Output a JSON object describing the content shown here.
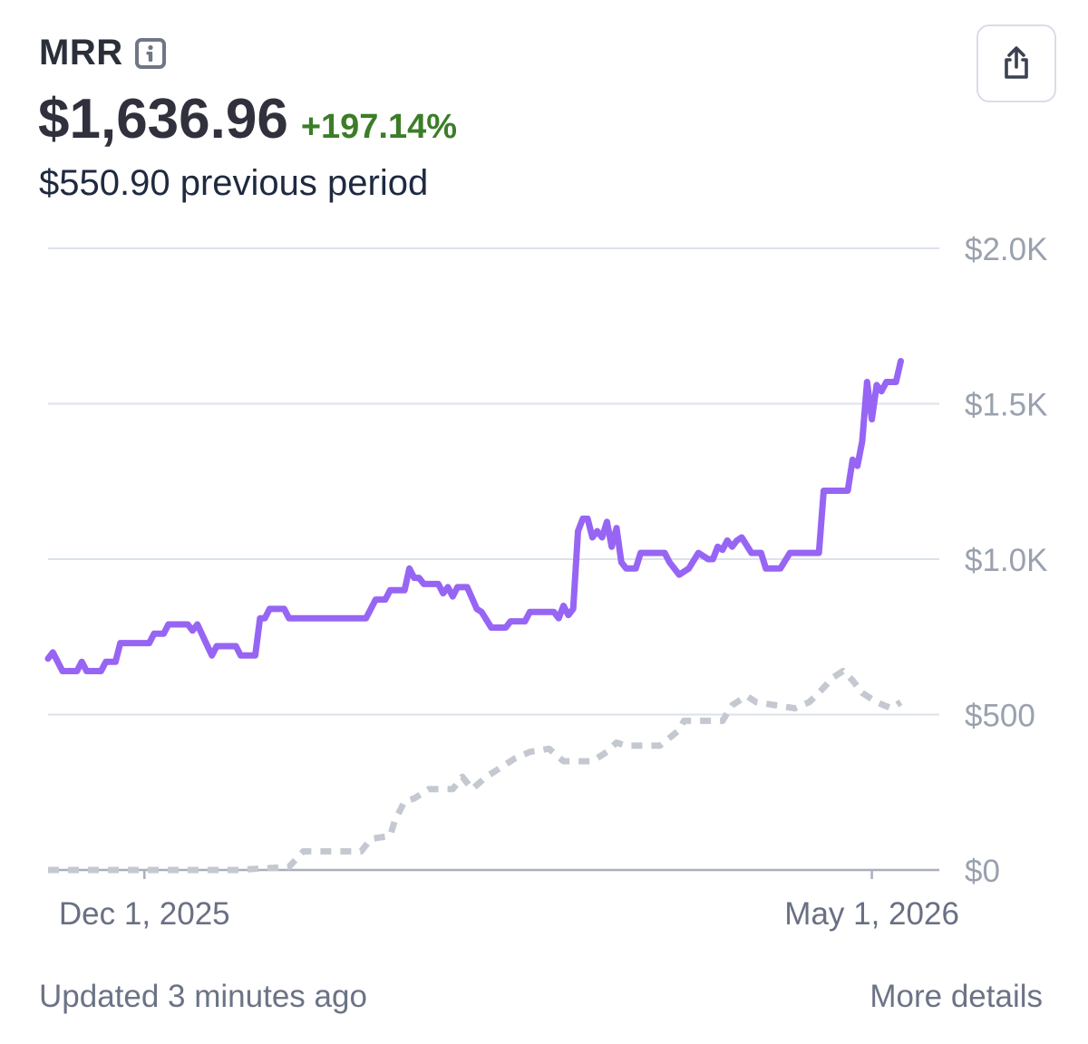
{
  "header": {
    "title": "MRR",
    "info_icon": "info-icon",
    "value": "$1,636.96",
    "change": "+197.14%",
    "previous": "$550.90 previous period",
    "share_icon": "share-icon"
  },
  "footer": {
    "updated": "Updated 3 minutes ago",
    "more_details": "More details"
  },
  "colors": {
    "current_series": "#9765f4",
    "previous_series": "#c4c8d0",
    "change_positive": "#3c7d28",
    "grid": "#dde2ea"
  },
  "chart_data": {
    "type": "line",
    "ylim": [
      0,
      2000
    ],
    "y_ticks": [
      {
        "value": 0,
        "label": "$0"
      },
      {
        "value": 500,
        "label": "$500"
      },
      {
        "value": 1000,
        "label": "$1.0K"
      },
      {
        "value": 1500,
        "label": "$1.5K"
      },
      {
        "value": 2000,
        "label": "$2.0K"
      }
    ],
    "x_range": [
      "2025-11-11",
      "2026-05-15"
    ],
    "x_ticks": [
      {
        "date": "2025-12-01",
        "label": "Dec 1, 2025"
      },
      {
        "date": "2026-05-01",
        "label": "May 1, 2026"
      }
    ],
    "grid": true,
    "series": [
      {
        "style": "solid",
        "points": [
          [
            "2025-11-11",
            680
          ],
          [
            "2025-11-12",
            700
          ],
          [
            "2025-11-14",
            640
          ],
          [
            "2025-11-17",
            640
          ],
          [
            "2025-11-18",
            670
          ],
          [
            "2025-11-19",
            640
          ],
          [
            "2025-11-22",
            640
          ],
          [
            "2025-11-23",
            670
          ],
          [
            "2025-11-25",
            670
          ],
          [
            "2025-11-26",
            730
          ],
          [
            "2025-12-02",
            730
          ],
          [
            "2025-12-03",
            760
          ],
          [
            "2025-12-05",
            760
          ],
          [
            "2025-12-06",
            790
          ],
          [
            "2025-12-10",
            790
          ],
          [
            "2025-12-11",
            770
          ],
          [
            "2025-12-12",
            790
          ],
          [
            "2025-12-15",
            690
          ],
          [
            "2025-12-16",
            720
          ],
          [
            "2025-12-20",
            720
          ],
          [
            "2025-12-21",
            690
          ],
          [
            "2025-12-24",
            690
          ],
          [
            "2025-12-25",
            810
          ],
          [
            "2025-12-26",
            810
          ],
          [
            "2025-12-27",
            840
          ],
          [
            "2025-12-30",
            840
          ],
          [
            "2025-12-31",
            810
          ],
          [
            "2026-01-16",
            810
          ],
          [
            "2026-01-18",
            870
          ],
          [
            "2026-01-20",
            870
          ],
          [
            "2026-01-21",
            900
          ],
          [
            "2026-01-24",
            900
          ],
          [
            "2026-01-25",
            970
          ],
          [
            "2026-01-26",
            940
          ],
          [
            "2026-01-27",
            940
          ],
          [
            "2026-01-28",
            920
          ],
          [
            "2026-01-31",
            920
          ],
          [
            "2026-02-01",
            890
          ],
          [
            "2026-02-02",
            910
          ],
          [
            "2026-02-03",
            880
          ],
          [
            "2026-02-04",
            910
          ],
          [
            "2026-02-06",
            910
          ],
          [
            "2026-02-08",
            840
          ],
          [
            "2026-02-09",
            830
          ],
          [
            "2026-02-11",
            780
          ],
          [
            "2026-02-14",
            780
          ],
          [
            "2026-02-15",
            800
          ],
          [
            "2026-02-18",
            800
          ],
          [
            "2026-02-19",
            830
          ],
          [
            "2026-02-24",
            830
          ],
          [
            "2026-02-25",
            810
          ],
          [
            "2026-02-26",
            850
          ],
          [
            "2026-02-27",
            820
          ],
          [
            "2026-02-28",
            840
          ],
          [
            "2026-03-01",
            1090
          ],
          [
            "2026-03-02",
            1130
          ],
          [
            "2026-03-03",
            1130
          ],
          [
            "2026-03-04",
            1070
          ],
          [
            "2026-03-05",
            1090
          ],
          [
            "2026-03-06",
            1070
          ],
          [
            "2026-03-07",
            1120
          ],
          [
            "2026-03-08",
            1040
          ],
          [
            "2026-03-09",
            1100
          ],
          [
            "2026-03-10",
            990
          ],
          [
            "2026-03-11",
            970
          ],
          [
            "2026-03-13",
            970
          ],
          [
            "2026-03-14",
            1020
          ],
          [
            "2026-03-19",
            1020
          ],
          [
            "2026-03-20",
            990
          ],
          [
            "2026-03-22",
            950
          ],
          [
            "2026-03-24",
            970
          ],
          [
            "2026-03-26",
            1020
          ],
          [
            "2026-03-28",
            1000
          ],
          [
            "2026-03-29",
            1000
          ],
          [
            "2026-03-30",
            1040
          ],
          [
            "2026-03-31",
            1030
          ],
          [
            "2026-04-01",
            1060
          ],
          [
            "2026-04-02",
            1040
          ],
          [
            "2026-04-03",
            1060
          ],
          [
            "2026-04-04",
            1070
          ],
          [
            "2026-04-06",
            1020
          ],
          [
            "2026-04-08",
            1020
          ],
          [
            "2026-04-09",
            970
          ],
          [
            "2026-04-12",
            970
          ],
          [
            "2026-04-14",
            1020
          ],
          [
            "2026-04-20",
            1020
          ],
          [
            "2026-04-21",
            1220
          ],
          [
            "2026-04-26",
            1220
          ],
          [
            "2026-04-27",
            1320
          ],
          [
            "2026-04-28",
            1300
          ],
          [
            "2026-04-29",
            1380
          ],
          [
            "2026-04-30",
            1570
          ],
          [
            "2026-05-01",
            1450
          ],
          [
            "2026-05-02",
            1560
          ],
          [
            "2026-05-03",
            1540
          ],
          [
            "2026-05-04",
            1570
          ],
          [
            "2026-05-06",
            1570
          ],
          [
            "2026-05-07",
            1637
          ]
        ]
      },
      {
        "style": "dashed",
        "points": [
          [
            "2025-11-11",
            0
          ],
          [
            "2025-12-20",
            0
          ],
          [
            "2025-12-31",
            10
          ],
          [
            "2026-01-03",
            60
          ],
          [
            "2026-01-05",
            60
          ],
          [
            "2026-01-15",
            60
          ],
          [
            "2026-01-17",
            100
          ],
          [
            "2026-01-21",
            110
          ],
          [
            "2026-01-22",
            160
          ],
          [
            "2026-01-24",
            220
          ],
          [
            "2026-01-26",
            230
          ],
          [
            "2026-01-29",
            260
          ],
          [
            "2026-02-03",
            260
          ],
          [
            "2026-02-05",
            300
          ],
          [
            "2026-02-07",
            260
          ],
          [
            "2026-02-10",
            300
          ],
          [
            "2026-02-13",
            330
          ],
          [
            "2026-02-16",
            360
          ],
          [
            "2026-02-19",
            380
          ],
          [
            "2026-02-23",
            390
          ],
          [
            "2026-02-26",
            350
          ],
          [
            "2026-03-04",
            350
          ],
          [
            "2026-03-07",
            380
          ],
          [
            "2026-03-09",
            410
          ],
          [
            "2026-03-11",
            400
          ],
          [
            "2026-03-18",
            400
          ],
          [
            "2026-03-22",
            450
          ],
          [
            "2026-03-23",
            480
          ],
          [
            "2026-03-31",
            480
          ],
          [
            "2026-04-02",
            530
          ],
          [
            "2026-04-05",
            560
          ],
          [
            "2026-04-07",
            540
          ],
          [
            "2026-04-15",
            520
          ],
          [
            "2026-04-18",
            540
          ],
          [
            "2026-04-20",
            570
          ],
          [
            "2026-04-23",
            620
          ],
          [
            "2026-04-25",
            640
          ],
          [
            "2026-04-27",
            610
          ],
          [
            "2026-04-29",
            570
          ],
          [
            "2026-05-02",
            540
          ],
          [
            "2026-05-05",
            520
          ],
          [
            "2026-05-07",
            540
          ]
        ]
      }
    ]
  }
}
